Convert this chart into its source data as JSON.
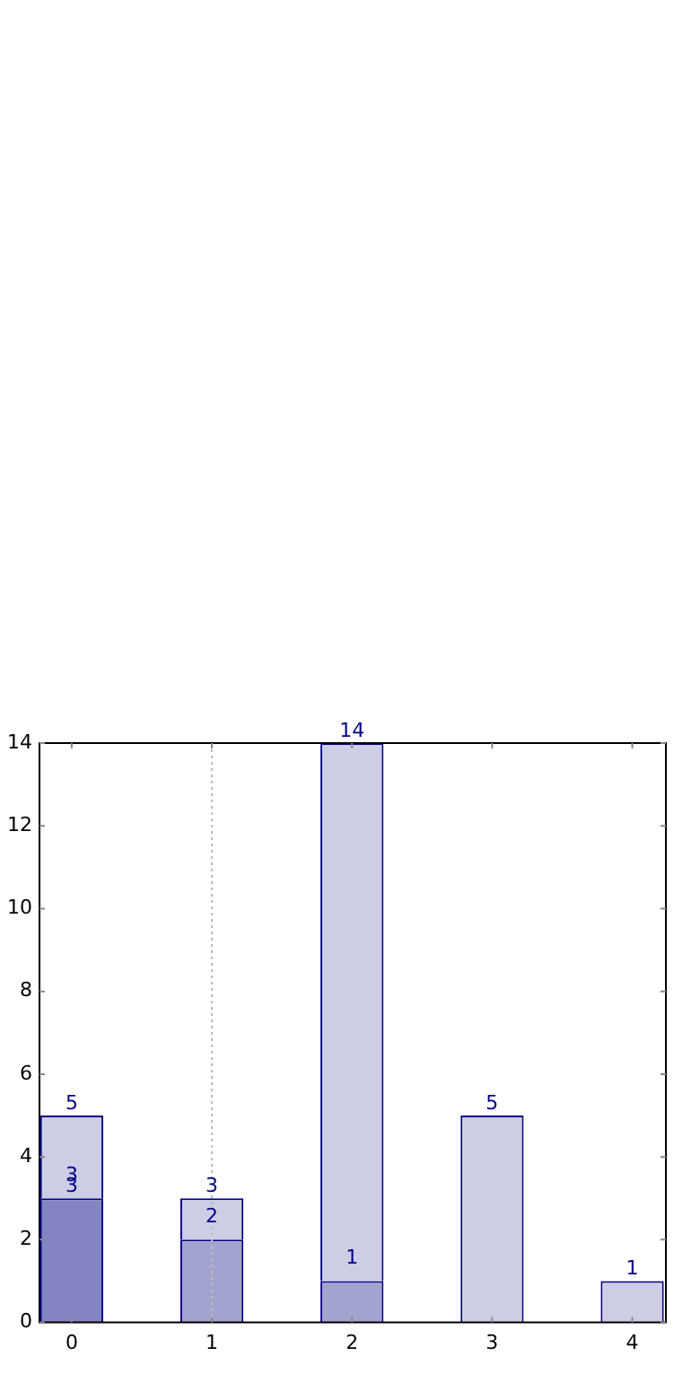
{
  "chart_data": {
    "type": "bar",
    "x": [
      0,
      1,
      2,
      3,
      4
    ],
    "stacked": true,
    "series": [
      {
        "color": "#8484c2",
        "values": [
          3,
          null,
          null,
          null,
          null
        ],
        "value_labels": [
          "3",
          null,
          null,
          null,
          null
        ]
      },
      {
        "color": "#a3a3d0",
        "values": [
          null,
          2,
          1,
          null,
          null
        ],
        "value_labels": [
          null,
          "2",
          "1",
          null,
          null
        ]
      },
      {
        "color": "#cdcde5",
        "values": [
          2,
          1,
          13,
          5,
          1
        ]
      }
    ],
    "totals": [
      "5",
      "3",
      "14",
      "5",
      "1"
    ],
    "annotations": [
      "3"
    ],
    "xlim": [
      -0.23,
      4.24
    ],
    "xticks": [
      0,
      1,
      2,
      3,
      4
    ],
    "ylim": [
      0,
      14
    ],
    "yticks": [
      0,
      2,
      4,
      6,
      8,
      10,
      12,
      14
    ],
    "grid": false,
    "legend": false,
    "ref_lines": [
      {
        "axis": "x",
        "value": 1,
        "color": "#bbbbbb",
        "line_style": "dotted"
      }
    ]
  }
}
